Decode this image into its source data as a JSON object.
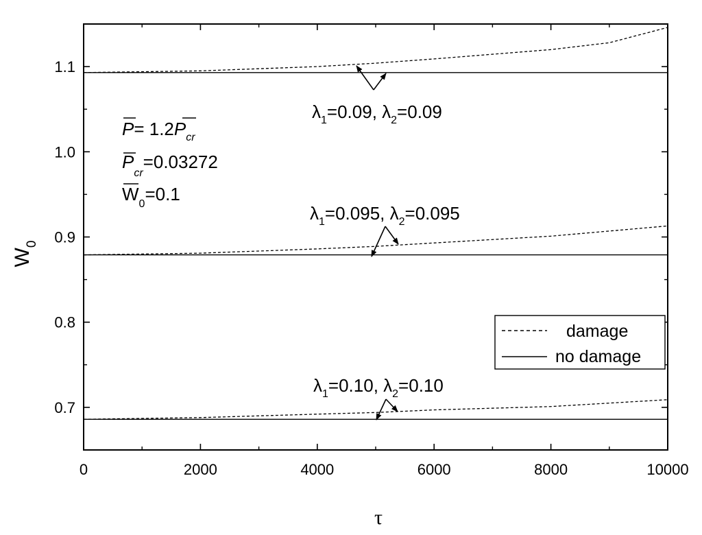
{
  "chart_data": {
    "type": "line",
    "xlabel": "τ",
    "ylabel": {
      "main": "W",
      "sub": "0"
    },
    "xlim": [
      0,
      10000
    ],
    "ylim": [
      0.65,
      1.15
    ],
    "x_ticks": [
      0,
      2000,
      4000,
      6000,
      8000,
      10000
    ],
    "x_tick_labels": [
      "0",
      "2000",
      "4000",
      "6000",
      "8000",
      "10000"
    ],
    "y_ticks": [
      0.7,
      0.8,
      0.9,
      1.0,
      1.1
    ],
    "y_tick_labels": [
      "0.7",
      "0.8",
      "0.9",
      "1.0",
      "1.1"
    ],
    "grid": false,
    "legend": {
      "position": "right",
      "entries": [
        {
          "label": "damage",
          "style": "dashed"
        },
        {
          "label": "no damage",
          "style": "solid"
        }
      ]
    },
    "series": [
      {
        "style": "dashed",
        "group": "λ=0.09",
        "x": [
          0,
          2000,
          4000,
          5000,
          6000,
          8000,
          9000,
          10000
        ],
        "y": [
          1.093,
          1.095,
          1.1,
          1.104,
          1.109,
          1.12,
          1.128,
          1.146
        ]
      },
      {
        "style": "solid",
        "group": "λ=0.09",
        "x": [
          0,
          10000
        ],
        "y": [
          1.093,
          1.093
        ]
      },
      {
        "style": "dashed",
        "group": "λ=0.095",
        "x": [
          0,
          2000,
          4000,
          5000,
          6000,
          8000,
          10000
        ],
        "y": [
          0.879,
          0.881,
          0.886,
          0.889,
          0.893,
          0.901,
          0.913
        ]
      },
      {
        "style": "solid",
        "group": "λ=0.095",
        "x": [
          0,
          10000
        ],
        "y": [
          0.879,
          0.879
        ]
      },
      {
        "style": "dashed",
        "group": "λ=0.10",
        "x": [
          0,
          2000,
          4000,
          5000,
          6000,
          8000,
          10000
        ],
        "y": [
          0.686,
          0.688,
          0.692,
          0.694,
          0.697,
          0.701,
          0.709
        ]
      },
      {
        "style": "solid",
        "group": "λ=0.10",
        "x": [
          0,
          10000
        ],
        "y": [
          0.686,
          0.686
        ]
      }
    ],
    "annotations": {
      "params": {
        "line1": {
          "sym": "P",
          "eq": "=  1.2",
          "sym2": "P",
          "sub": "cr"
        },
        "line2": {
          "sym": "P",
          "sub": "cr",
          "eq": "=0.03272"
        },
        "line3": {
          "sym": "W",
          "sub": "0",
          "eq": "=0.1"
        }
      },
      "lambda_labels": [
        {
          "l1_sym": "λ",
          "l1_sub": "1",
          "l1_val": "=0.09, ",
          "l2_sym": "λ",
          "l2_sub": "2",
          "l2_val": "=0.09"
        },
        {
          "l1_sym": "λ",
          "l1_sub": "1",
          "l1_val": "=0.095, ",
          "l2_sym": "λ",
          "l2_sub": "2",
          "l2_val": "=0.095"
        },
        {
          "l1_sym": "λ",
          "l1_sub": "1",
          "l1_val": "=0.10, ",
          "l2_sym": "λ",
          "l2_sub": "2",
          "l2_val": "=0.10"
        }
      ]
    }
  }
}
